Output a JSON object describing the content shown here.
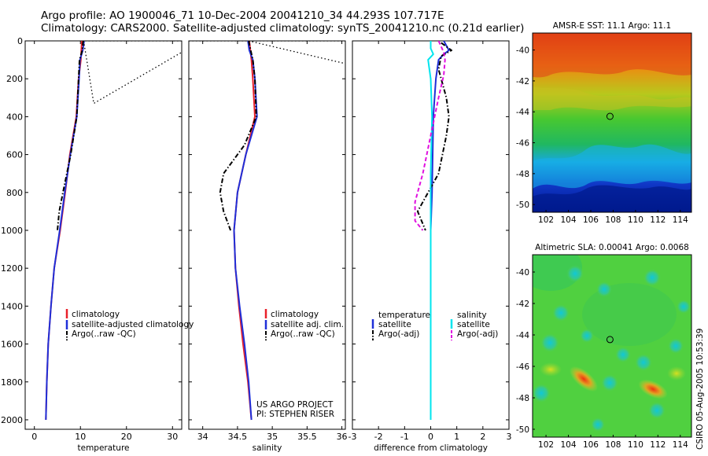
{
  "header": {
    "line1": "Argo profile: AO 1900046_71 10-Dec-2004 20041210_34 44.293S 107.717E",
    "line2": "Climatology: CARS2000. Satellite-adjusted climatology: synTS_20041210.nc (0.21d earlier)"
  },
  "colors": {
    "climatology": "#e8202a",
    "satellite": "#1f2fd8",
    "argo": "#000000",
    "salinity_diff": "#00e5ee",
    "salinity_argo_diff": "#e010e0"
  },
  "credits": [
    "US ARGO PROJECT",
    "PI: STEPHEN RISER"
  ],
  "stamp": "CSIRO 05-Aug-2005 10:53:39",
  "chart_data": [
    {
      "type": "line",
      "xlabel": "temperature",
      "xlim": [
        -2,
        32
      ],
      "ylim": [
        0,
        2050
      ],
      "y_reversed": true,
      "x_ticks": [
        0,
        10,
        20,
        30
      ],
      "y_ticks": [
        0,
        200,
        400,
        600,
        800,
        1000,
        1200,
        1400,
        1600,
        1800,
        2000
      ],
      "legend": [
        "climatology",
        "satellite-adjusted climatology",
        "Argo(..raw -QC)"
      ],
      "series": [
        {
          "name": "climatology",
          "style": "solid",
          "color": "#e8202a",
          "points": [
            [
              10.3,
              0
            ],
            [
              10.1,
              100
            ],
            [
              9.6,
              200
            ],
            [
              9.1,
              400
            ],
            [
              7.7,
              600
            ],
            [
              6.7,
              800
            ],
            [
              5.6,
              1000
            ],
            [
              4.3,
              1200
            ],
            [
              3.6,
              1400
            ],
            [
              3.0,
              1600
            ],
            [
              2.7,
              1800
            ],
            [
              2.5,
              2000
            ]
          ]
        },
        {
          "name": "satellite-adjusted climatology",
          "style": "solid",
          "color": "#1f2fd8",
          "points": [
            [
              10.8,
              0
            ],
            [
              10.5,
              50
            ],
            [
              9.9,
              100
            ],
            [
              9.7,
              200
            ],
            [
              9.2,
              400
            ],
            [
              7.8,
              600
            ],
            [
              6.6,
              800
            ],
            [
              5.5,
              1000
            ],
            [
              4.3,
              1200
            ],
            [
              3.6,
              1400
            ],
            [
              3.0,
              1600
            ],
            [
              2.7,
              1800
            ],
            [
              2.5,
              2000
            ]
          ]
        },
        {
          "name": "Argo(..raw -QC)",
          "style": "dashdot",
          "color": "#000000",
          "points": [
            [
              10.6,
              0
            ],
            [
              10.4,
              50
            ],
            [
              9.8,
              100
            ],
            [
              9.6,
              200
            ],
            [
              9.2,
              400
            ],
            [
              7.9,
              600
            ],
            [
              6.2,
              800
            ],
            [
              5.4,
              900
            ],
            [
              5.0,
              1000
            ]
          ]
        },
        {
          "name": "",
          "style": "dotted",
          "color": "#000000",
          "points": [
            [
              10.7,
              0
            ],
            [
              12.9,
              330
            ],
            [
              32,
              60
            ]
          ]
        },
        {
          "name": "",
          "style": "dotted",
          "color": "#000000",
          "points": [
            [
              11,
              0
            ],
            [
              32,
              0
            ]
          ]
        }
      ]
    },
    {
      "type": "line",
      "xlabel": "salinity",
      "xlim": [
        33.8,
        36.05
      ],
      "ylim": [
        0,
        2050
      ],
      "y_reversed": true,
      "x_ticks": [
        34,
        34.5,
        35,
        35.5,
        36
      ],
      "x_tick_labels": [
        "34",
        "34.5",
        "35",
        "35.5",
        "36"
      ],
      "legend": [
        "climatology",
        "satellite adj. clim.",
        "Argo(..raw -QC)"
      ],
      "series": [
        {
          "name": "climatology",
          "style": "solid",
          "color": "#e8202a",
          "points": [
            [
              34.67,
              0
            ],
            [
              34.7,
              100
            ],
            [
              34.72,
              200
            ],
            [
              34.75,
              400
            ],
            [
              34.62,
              600
            ],
            [
              34.5,
              800
            ],
            [
              34.45,
              1000
            ],
            [
              34.47,
              1200
            ],
            [
              34.52,
              1400
            ],
            [
              34.58,
              1600
            ],
            [
              34.65,
              1800
            ],
            [
              34.7,
              2000
            ]
          ]
        },
        {
          "name": "satellite adj. clim.",
          "style": "solid",
          "color": "#1f2fd8",
          "points": [
            [
              34.65,
              0
            ],
            [
              34.67,
              50
            ],
            [
              34.72,
              100
            ],
            [
              34.75,
              200
            ],
            [
              34.78,
              400
            ],
            [
              34.62,
              600
            ],
            [
              34.5,
              800
            ],
            [
              34.45,
              1000
            ],
            [
              34.47,
              1200
            ],
            [
              34.53,
              1400
            ],
            [
              34.6,
              1600
            ],
            [
              34.66,
              1800
            ],
            [
              34.7,
              2000
            ]
          ]
        },
        {
          "name": "Argo(..raw -QC)",
          "style": "dashdot",
          "color": "#000000",
          "points": [
            [
              34.66,
              0
            ],
            [
              34.69,
              50
            ],
            [
              34.72,
              100
            ],
            [
              34.75,
              200
            ],
            [
              34.77,
              400
            ],
            [
              34.6,
              550
            ],
            [
              34.3,
              700
            ],
            [
              34.25,
              800
            ],
            [
              34.3,
              900
            ],
            [
              34.4,
              1000
            ]
          ]
        },
        {
          "name": "",
          "style": "dotted",
          "color": "#000000",
          "points": [
            [
              34.66,
              0
            ],
            [
              36.05,
              120
            ]
          ]
        },
        {
          "name": "",
          "style": "dotted",
          "color": "#000000",
          "points": [
            [
              33.8,
              0
            ],
            [
              36.05,
              0
            ]
          ]
        }
      ]
    },
    {
      "type": "line",
      "xlabel": "difference from climatology",
      "xlim": [
        -3,
        3
      ],
      "ylim": [
        0,
        2050
      ],
      "y_reversed": true,
      "x_ticks": [
        -3,
        -2,
        -1,
        0,
        1,
        2,
        3
      ],
      "legend_left_title": "temperature",
      "legend_right_title": "salinity",
      "legend_left": [
        "satellite",
        "Argo(-adj)"
      ],
      "legend_right": [
        "satellite",
        "Argo(-adj)"
      ],
      "series": [
        {
          "name": "temperature satellite",
          "style": "solid",
          "color": "#1f2fd8",
          "points": [
            [
              0.5,
              0
            ],
            [
              0.7,
              50
            ],
            [
              0.5,
              70
            ],
            [
              0.3,
              100
            ],
            [
              0.2,
              200
            ],
            [
              0.1,
              400
            ],
            [
              0.05,
              800
            ],
            [
              0,
              1000
            ],
            [
              0,
              1200
            ],
            [
              0,
              1600
            ],
            [
              0,
              2000
            ]
          ]
        },
        {
          "name": "temperature Argo(-adj)",
          "style": "dashdot",
          "color": "#000000",
          "points": [
            [
              0.4,
              10
            ],
            [
              0.8,
              50
            ],
            [
              0.4,
              80
            ],
            [
              0.3,
              150
            ],
            [
              0.6,
              300
            ],
            [
              0.7,
              400
            ],
            [
              0.6,
              500
            ],
            [
              0.3,
              700
            ],
            [
              -0.1,
              800
            ],
            [
              -0.5,
              900
            ],
            [
              -0.2,
              1000
            ]
          ]
        },
        {
          "name": "salinity satellite",
          "style": "solid",
          "color": "#00e5ee",
          "points": [
            [
              0,
              0
            ],
            [
              0,
              40
            ],
            [
              0.1,
              70
            ],
            [
              -0.1,
              100
            ],
            [
              0,
              200
            ],
            [
              0.05,
              400
            ],
            [
              0,
              700
            ],
            [
              0,
              1000
            ],
            [
              0,
              1600
            ],
            [
              0,
              2000
            ]
          ]
        },
        {
          "name": "salinity Argo(-adj)",
          "style": "dashed",
          "color": "#e010e0",
          "points": [
            [
              0.3,
              0
            ],
            [
              0.5,
              60
            ],
            [
              0.55,
              100
            ],
            [
              0.5,
              180
            ],
            [
              0.3,
              300
            ],
            [
              0,
              500
            ],
            [
              -0.3,
              700
            ],
            [
              -0.6,
              850
            ],
            [
              -0.6,
              950
            ],
            [
              -0.3,
              1000
            ]
          ]
        }
      ]
    },
    {
      "type": "heatmap",
      "title": "AMSR-E SST: 11.1 Argo: 11.1",
      "xlim": [
        100.8,
        115
      ],
      "ylim": [
        -50.5,
        -38.9
      ],
      "x_ticks": [
        102,
        104,
        106,
        108,
        110,
        112,
        114
      ],
      "y_ticks": [
        -50,
        -48,
        -46,
        -44,
        -42,
        -40
      ],
      "marker": [
        107.717,
        -44.293
      ]
    },
    {
      "type": "heatmap",
      "title": "Altimetric SLA: 0.00041 Argo: 0.0068",
      "xlim": [
        100.8,
        115
      ],
      "ylim": [
        -50.5,
        -38.9
      ],
      "x_ticks": [
        102,
        104,
        106,
        108,
        110,
        112,
        114
      ],
      "y_ticks": [
        -50,
        -48,
        -46,
        -44,
        -42,
        -40
      ],
      "marker": [
        107.717,
        -44.293
      ]
    }
  ]
}
